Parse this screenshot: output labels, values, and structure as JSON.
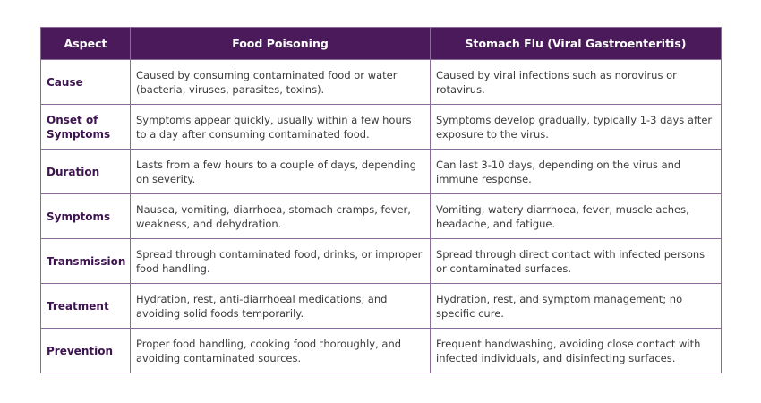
{
  "table": {
    "headers": [
      "Aspect",
      "Food Poisoning",
      "Stomach Flu (Viral Gastroenteritis)"
    ],
    "rows": [
      {
        "aspect": "Cause",
        "food": "Caused by consuming contaminated food or water (bacteria, viruses, parasites, toxins).",
        "flu": "Caused by viral infections such as norovirus or rotavirus."
      },
      {
        "aspect": "Onset of Symptoms",
        "food": "Symptoms appear quickly, usually within a few hours to a day after consuming contaminated food.",
        "flu": "Symptoms develop gradually, typically 1-3 days after exposure to the virus."
      },
      {
        "aspect": "Duration",
        "food": "Lasts from a few hours to a couple of days, depending on severity.",
        "flu": "Can last 3-10 days, depending on the virus and immune response."
      },
      {
        "aspect": "Symptoms",
        "food": "Nausea, vomiting, diarrhoea, stomach cramps, fever, weakness, and dehydration.",
        "flu": "Vomiting, watery diarrhoea, fever, muscle aches, headache, and fatigue."
      },
      {
        "aspect": "Transmission",
        "food": "Spread through contaminated food, drinks, or improper food handling.",
        "flu": "Spread through direct contact with infected persons or contaminated surfaces."
      },
      {
        "aspect": "Treatment",
        "food": "Hydration, rest, anti-diarrhoeal medications, and avoiding solid foods temporarily.",
        "flu": "Hydration, rest, and symptom management; no specific cure."
      },
      {
        "aspect": "Prevention",
        "food": "Proper food handling, cooking food thoroughly, and avoiding contaminated sources.",
        "flu": "Frequent handwashing, avoiding close contact with infected individuals, and disinfecting surfaces."
      }
    ]
  },
  "colors": {
    "header_bg": "#4a1a5a",
    "aspect_text": "#3d1450",
    "border": "#8c6a9c"
  }
}
